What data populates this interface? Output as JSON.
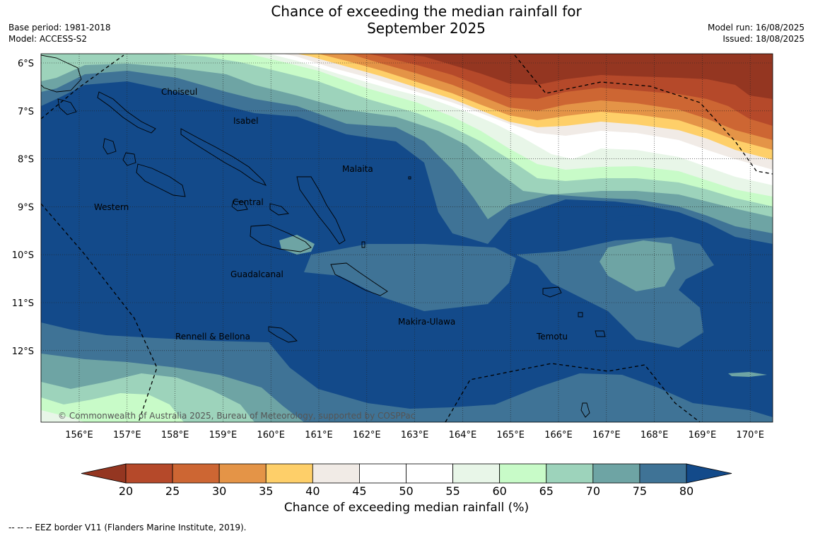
{
  "header": {
    "title_line1": "Chance of exceeding the median rainfall for",
    "title_line2": "September 2025",
    "base_period": "Base period: 1981-2018",
    "model": "Model: ACCESS-S2",
    "model_run": "Model run: 16/08/2025",
    "issued": "Issued: 18/08/2025"
  },
  "map": {
    "lat_labels": [
      "6°S",
      "7°S",
      "8°S",
      "9°S",
      "10°S",
      "11°S",
      "12°S"
    ],
    "lon_labels": [
      "156°E",
      "157°E",
      "158°E",
      "159°E",
      "160°E",
      "161°E",
      "162°E",
      "163°E",
      "164°E",
      "165°E",
      "166°E",
      "167°E",
      "168°E",
      "169°E",
      "170°E"
    ],
    "places": {
      "choiseul": "Choiseul",
      "isabel": "Isabel",
      "malaita": "Malaita",
      "western": "Western",
      "central": "Central",
      "guadalcanal": "Guadalcanal",
      "makira": "Makira-Ulawa",
      "rennell": "Rennell & Bellona",
      "temotu": "Temotu"
    },
    "copyright": "© Commonwealth of Australia 2025, Bureau of Meteorology, supported by COSPPac"
  },
  "colorbar": {
    "ticks": [
      "20",
      "25",
      "30",
      "35",
      "40",
      "45",
      "50",
      "55",
      "60",
      "65",
      "70",
      "75",
      "80"
    ],
    "label": "Chance of exceeding median rainfall (%)",
    "colors": [
      "#943621",
      "#b5492a",
      "#cd6633",
      "#e49447",
      "#fecf69",
      "#f1ebe6",
      "#ffffff",
      "#ffffff",
      "#e8f6e8",
      "#c8fbc8",
      "#9dd3bb",
      "#6ea4a4",
      "#3f7396",
      "#134a8a"
    ]
  },
  "footnote": "--  --  -- EEZ border V11 (Flanders Marine Institute, 2019)."
}
